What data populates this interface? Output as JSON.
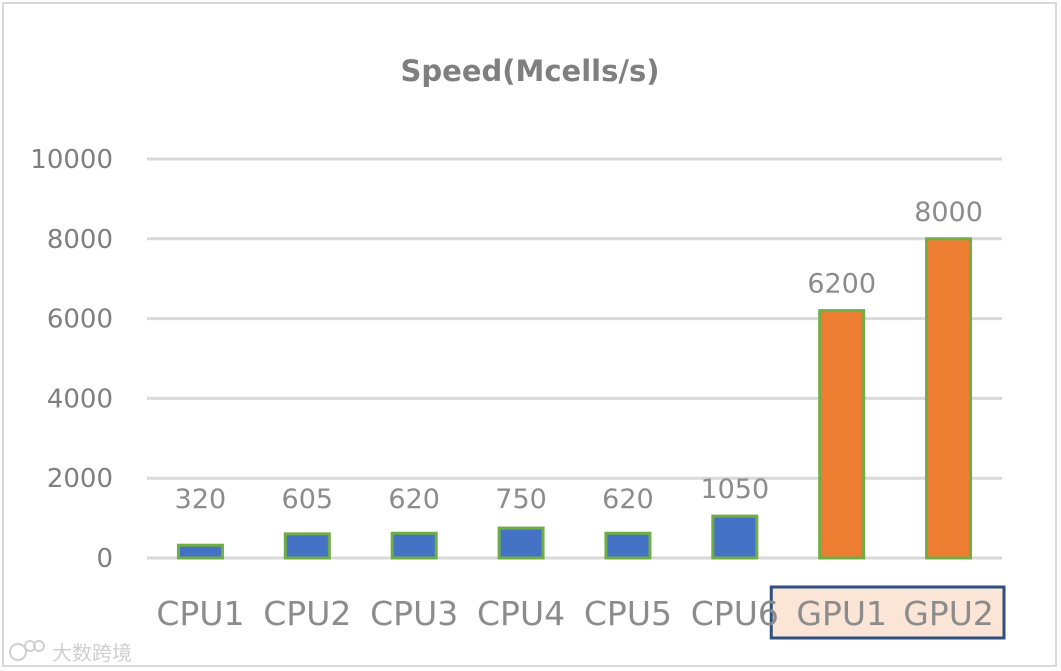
{
  "chart_data": {
    "type": "bar",
    "title": "Speed(Mcells/s)",
    "xlabel": "",
    "ylabel": "",
    "categories": [
      "CPU1",
      "CPU2",
      "CPU3",
      "CPU4",
      "CPU5",
      "CPU6",
      "GPU1",
      "GPU2"
    ],
    "values": [
      320,
      605,
      620,
      750,
      620,
      1050,
      6200,
      8000
    ],
    "ylim": [
      0,
      10000
    ],
    "yticks": [
      0,
      2000,
      4000,
      6000,
      8000,
      10000
    ],
    "grid": true,
    "data_labels": true,
    "colors": {
      "cpu_bar": "#4472c4",
      "gpu_bar": "#ed7d31",
      "bar_border": "#70ad47",
      "highlight_fill": "#fbe5d6",
      "highlight_border": "#2f4f7f"
    },
    "highlighted_categories": [
      "GPU1",
      "GPU2"
    ]
  },
  "watermark": {
    "text": "大数跨境"
  }
}
